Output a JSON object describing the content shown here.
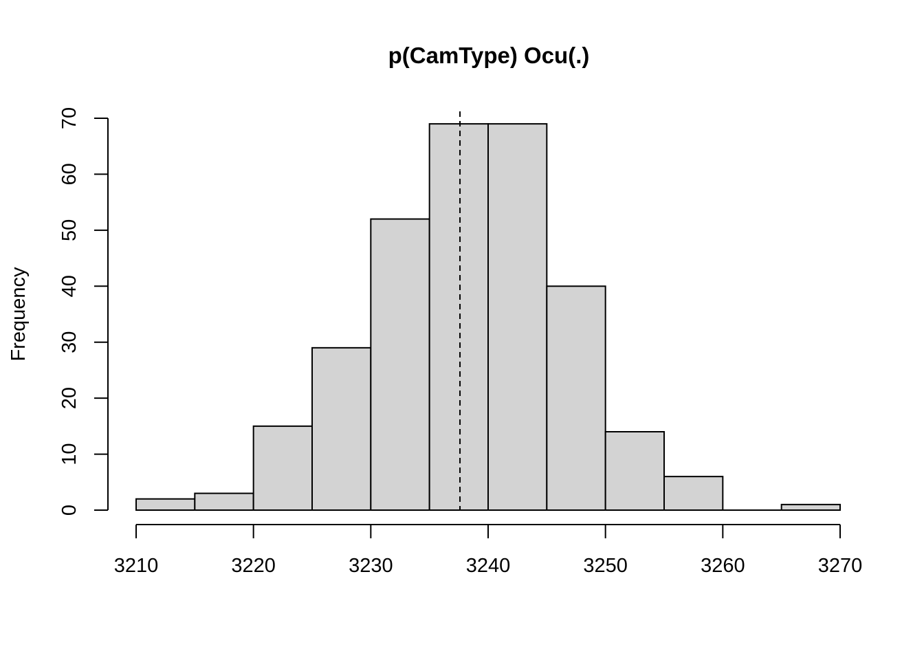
{
  "chart_data": {
    "type": "bar",
    "title": "p(CamType) Ocu(.)",
    "xlabel": "",
    "ylabel": "Frequency",
    "bins": [
      {
        "start": 3210,
        "end": 3215,
        "count": 2
      },
      {
        "start": 3215,
        "end": 3220,
        "count": 3
      },
      {
        "start": 3220,
        "end": 3225,
        "count": 15
      },
      {
        "start": 3225,
        "end": 3230,
        "count": 29
      },
      {
        "start": 3230,
        "end": 3235,
        "count": 52
      },
      {
        "start": 3235,
        "end": 3240,
        "count": 69
      },
      {
        "start": 3240,
        "end": 3245,
        "count": 69
      },
      {
        "start": 3245,
        "end": 3250,
        "count": 40
      },
      {
        "start": 3250,
        "end": 3255,
        "count": 14
      },
      {
        "start": 3255,
        "end": 3260,
        "count": 6
      },
      {
        "start": 3260,
        "end": 3265,
        "count": 0
      },
      {
        "start": 3265,
        "end": 3270,
        "count": 1
      }
    ],
    "xlim": [
      3210,
      3270
    ],
    "ylim": [
      0,
      70
    ],
    "xticks": [
      "3210",
      "3220",
      "3230",
      "3240",
      "3250",
      "3260",
      "3270"
    ],
    "yticks": [
      "0",
      "10",
      "20",
      "30",
      "40",
      "50",
      "60",
      "70"
    ],
    "reference_line": {
      "x": 3237.6,
      "style": "dashed"
    },
    "bar_fill": "#d3d3d3",
    "bar_stroke": "#000000",
    "grid": false,
    "legend": "none"
  }
}
